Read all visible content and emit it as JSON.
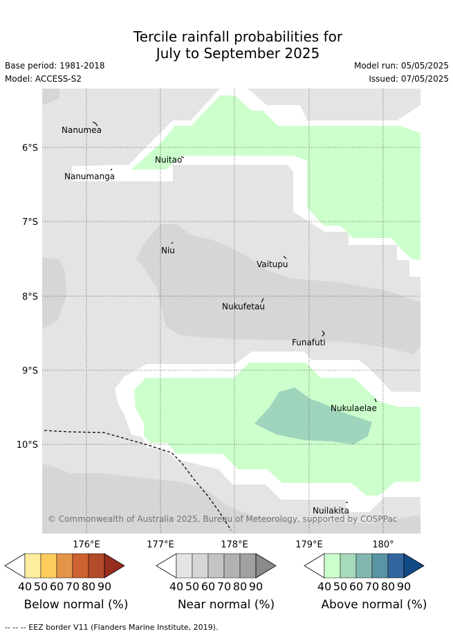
{
  "title": {
    "line1": "Tercile rainfall probabilities for",
    "line2": "July to September 2025"
  },
  "meta": {
    "base_period": "Base period: 1981-2018",
    "model": "Model: ACCESS-S2",
    "model_run": "Model run: 05/05/2025",
    "issued": "Issued: 07/05/2025"
  },
  "map": {
    "lat_ticks": [
      "6°S",
      "7°S",
      "8°S",
      "9°S",
      "10°S"
    ],
    "lon_ticks": [
      "176°E",
      "177°E",
      "178°E",
      "179°E",
      "180°"
    ],
    "places": [
      {
        "name": "Nanumea"
      },
      {
        "name": "Nuitao"
      },
      {
        "name": "Nanumanga"
      },
      {
        "name": "Niu"
      },
      {
        "name": "Vaitupu"
      },
      {
        "name": "Nukufetau"
      },
      {
        "name": "Funafuti"
      },
      {
        "name": "Nukulaelae"
      },
      {
        "name": "Nuilakita"
      }
    ],
    "copyright": "© Commonwealth of Australia 2025, Bureau of Meteorology, supported by COSPPac"
  },
  "colorbars": [
    {
      "label": "Below normal (%)",
      "ticks": [
        "40",
        "50",
        "60",
        "70",
        "80",
        "90"
      ],
      "colors": [
        "#ffffff",
        "#ffeda0",
        "#fecc5c",
        "#e3954a",
        "#cd6232",
        "#b24b29",
        "#962d1f"
      ]
    },
    {
      "label": "Near normal (%)",
      "ticks": [
        "40",
        "50",
        "60",
        "70",
        "80",
        "90"
      ],
      "colors": [
        "#ffffff",
        "#e4e4e4",
        "#d6d6d6",
        "#c4c4c4",
        "#b2b2b2",
        "#a1a1a1",
        "#8a8a8a"
      ]
    },
    {
      "label": "Above normal (%)",
      "ticks": [
        "40",
        "50",
        "60",
        "70",
        "80",
        "90"
      ],
      "colors": [
        "#ffffff",
        "#ccffcc",
        "#a7d9bb",
        "#83b8b0",
        "#5a93a3",
        "#33669f",
        "#104b86"
      ]
    }
  ],
  "footer": "--  --  -- EEZ border V11 (Flanders Marine Institute, 2019)."
}
